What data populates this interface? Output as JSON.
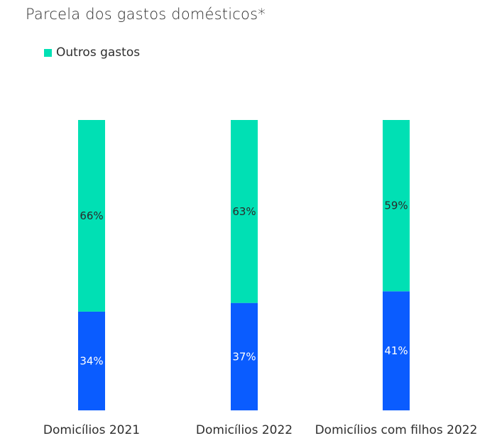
{
  "chart_data": {
    "type": "bar",
    "stacked": true,
    "title": "Parcela dos gastos domésticos*",
    "categories": [
      "Domicílios 2021",
      "Domicílios 2022",
      "Domicílios com filhos 2022"
    ],
    "series": [
      {
        "values": [
          34,
          37,
          41
        ],
        "labels": [
          "34%",
          "37%",
          "41%"
        ],
        "color": "#0a5cff",
        "label_color": "#ffffff"
      },
      {
        "name": "Outros gastos",
        "values": [
          66,
          63,
          59
        ],
        "labels": [
          "66%",
          "63%",
          "59%"
        ],
        "color": "#00e0b4",
        "label_color": "#2b2b2b"
      }
    ],
    "ylim": [
      0,
      100
    ],
    "legend": {
      "position": "top-left",
      "entries": [
        "Outros gastos"
      ]
    },
    "grid": false
  }
}
